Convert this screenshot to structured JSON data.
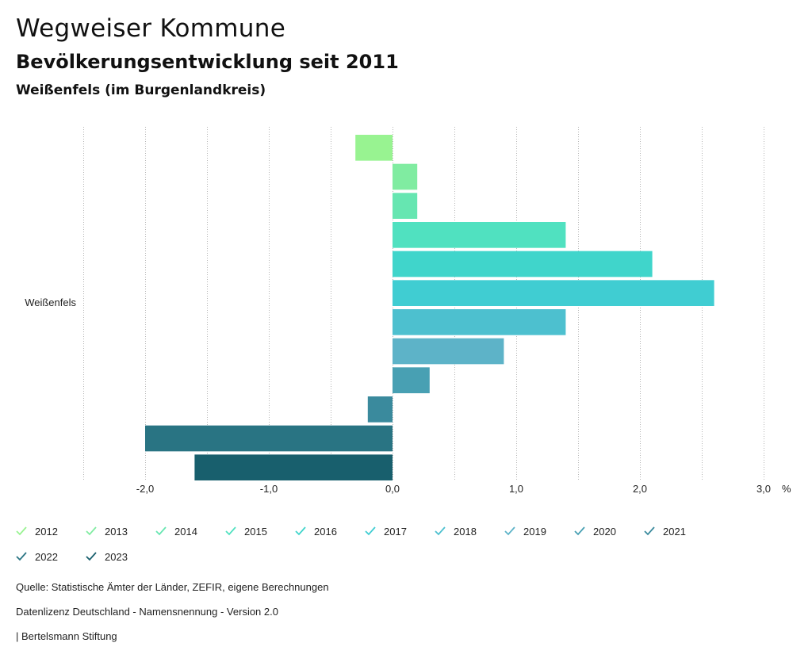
{
  "header": {
    "title": "Wegweiser Kommune",
    "subtitle": "Bevölkerungsentwicklung seit 2011",
    "region": "Weißenfels (im Burgenlandkreis)"
  },
  "chart_data": {
    "type": "bar",
    "orientation": "horizontal",
    "categories": [
      "Weißenfels"
    ],
    "series": [
      {
        "name": "2012",
        "values": [
          -0.3
        ],
        "color": "#98f391"
      },
      {
        "name": "2013",
        "values": [
          0.2
        ],
        "color": "#80eca1"
      },
      {
        "name": "2014",
        "values": [
          0.2
        ],
        "color": "#66e6b1"
      },
      {
        "name": "2015",
        "values": [
          1.4
        ],
        "color": "#50e1c0"
      },
      {
        "name": "2016",
        "values": [
          2.1
        ],
        "color": "#40d5cb"
      },
      {
        "name": "2017",
        "values": [
          2.6
        ],
        "color": "#40cdd2"
      },
      {
        "name": "2018",
        "values": [
          1.4
        ],
        "color": "#4dc0cf"
      },
      {
        "name": "2019",
        "values": [
          0.9
        ],
        "color": "#5db3c8"
      },
      {
        "name": "2020",
        "values": [
          0.3
        ],
        "color": "#48a0b3"
      },
      {
        "name": "2021",
        "values": [
          -0.2
        ],
        "color": "#3a8a9d"
      },
      {
        "name": "2022",
        "values": [
          -2.0
        ],
        "color": "#297483"
      },
      {
        "name": "2023",
        "values": [
          -1.6
        ],
        "color": "#185f6d"
      }
    ],
    "xlim": [
      -2.5,
      3.0
    ],
    "xticks": [
      {
        "value": -2.0,
        "label": "-2,0"
      },
      {
        "value": -1.0,
        "label": "-1,0"
      },
      {
        "value": 0.0,
        "label": "0,0"
      },
      {
        "value": 1.0,
        "label": "1,0"
      },
      {
        "value": 2.0,
        "label": "2,0"
      },
      {
        "value": 3.0,
        "label": "3,0"
      }
    ],
    "gridlines": [
      -2.5,
      -2.0,
      -1.5,
      -1.0,
      -0.5,
      0.0,
      0.5,
      1.0,
      1.5,
      2.0,
      2.5,
      3.0
    ],
    "xunit": "%",
    "legend_position": "bottom"
  },
  "footer": {
    "source": "Quelle: Statistische Ämter der Länder, ZEFIR, eigene Berechnungen",
    "license": "Datenlizenz Deutschland - Namensnennung - Version 2.0",
    "publisher": "| Bertelsmann Stiftung"
  }
}
